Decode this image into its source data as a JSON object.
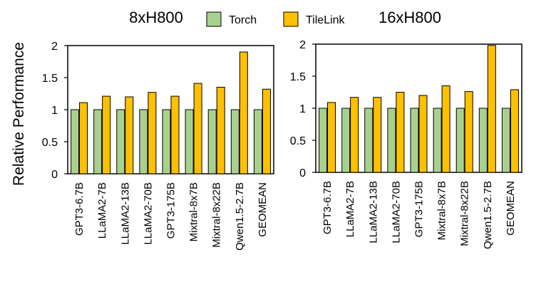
{
  "figure": {
    "ylabel": "Relative Performance",
    "legend": [
      {
        "name": "Torch",
        "color": "#a9d18e"
      },
      {
        "name": "TileLink",
        "color": "#ffc000"
      }
    ]
  },
  "chart_data": [
    {
      "type": "bar",
      "title": "8xH800",
      "ylabel": "Relative Performance",
      "ylim": [
        0,
        2
      ],
      "yticks": [
        "0",
        "0.5",
        "1",
        "1.5",
        "2"
      ],
      "categories": [
        "GPT3-6.7B",
        "LLaMA2-7B",
        "LLaMA2-13B",
        "LLaMA2-70B",
        "GPT3-175B",
        "Mixtral-8x7B",
        "Mixtral-8x22B",
        "Qwen1.5-2.7B",
        "GEOMEAN"
      ],
      "series": [
        {
          "name": "Torch",
          "color": "#a9d18e",
          "values": [
            1,
            1,
            1,
            1,
            1,
            1,
            1,
            1,
            1
          ]
        },
        {
          "name": "TileLink",
          "color": "#ffc000",
          "values": [
            1.11,
            1.21,
            1.2,
            1.27,
            1.21,
            1.41,
            1.35,
            1.9,
            1.32
          ]
        }
      ],
      "grid": false
    },
    {
      "type": "bar",
      "title": "16xH800",
      "ylabel": "",
      "ylim": [
        0,
        2
      ],
      "yticks": [
        "0",
        "0.5",
        "1",
        "1.5",
        "2"
      ],
      "categories": [
        "GPT3-6.7B",
        "LLaMA2-7B",
        "LLaMA2-13B",
        "LLaMA2-70B",
        "GPT3-175B",
        "Mixtral-8x7B",
        "Mixtral-8x22B",
        "Qwen1.5-2.7B",
        "GEOMEAN"
      ],
      "series": [
        {
          "name": "Torch",
          "color": "#a9d18e",
          "values": [
            1,
            1,
            1,
            1,
            1,
            1,
            1,
            1,
            1
          ]
        },
        {
          "name": "TileLink",
          "color": "#ffc000",
          "values": [
            1.09,
            1.17,
            1.17,
            1.25,
            1.2,
            1.35,
            1.26,
            1.98,
            1.29
          ]
        }
      ],
      "grid": false
    }
  ]
}
